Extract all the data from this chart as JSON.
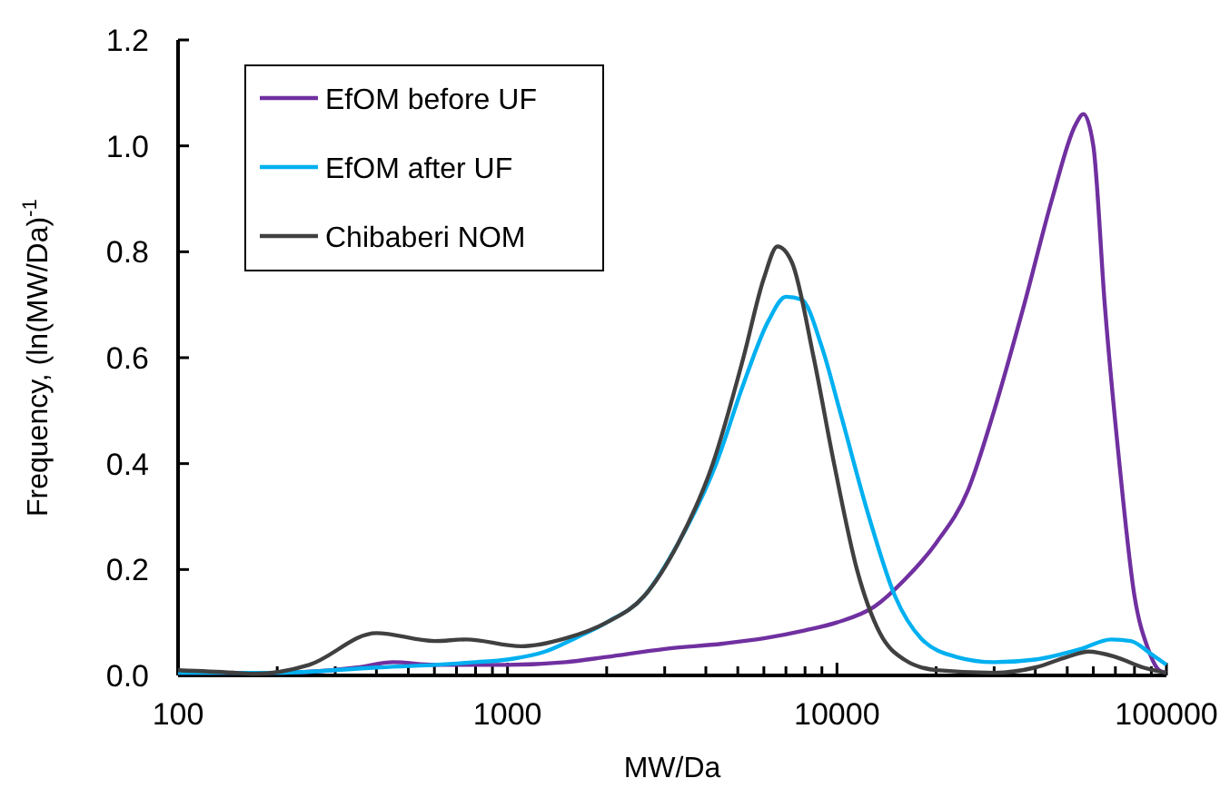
{
  "chart_data": {
    "type": "line",
    "xlabel": "MW/Da",
    "ylabel": "Frequency, (ln(MW/Da)$^{-1}$",
    "log": "x",
    "grid": false,
    "legend": "top left",
    "marker": "none",
    "line_style": "solid",
    "xlim": [
      100,
      100000
    ],
    "ylim": [
      0,
      1.2
    ],
    "xticks": [
      100,
      {
        "value": 200,
        "label": null
      },
      {
        "value": 300,
        "label": null
      },
      {
        "value": 400,
        "label": null
      },
      {
        "value": 500,
        "label": null
      },
      {
        "value": 600,
        "label": null
      },
      {
        "value": 700,
        "label": null
      },
      {
        "value": 800,
        "label": null
      },
      {
        "value": 900,
        "label": null
      },
      1000,
      {
        "value": 2000,
        "label": null
      },
      {
        "value": 3000,
        "label": null
      },
      {
        "value": 4000,
        "label": null
      },
      {
        "value": 5000,
        "label": null
      },
      {
        "value": 6000,
        "label": null
      },
      {
        "value": 7000,
        "label": null
      },
      {
        "value": 8000,
        "label": null
      },
      {
        "value": 9000,
        "label": null
      },
      10000,
      {
        "value": 20000,
        "label": null
      },
      {
        "value": 30000,
        "label": null
      },
      {
        "value": 40000,
        "label": null
      },
      {
        "value": 50000,
        "label": null
      },
      {
        "value": 60000,
        "label": null
      },
      {
        "value": 70000,
        "label": null
      },
      {
        "value": 80000,
        "label": null
      },
      {
        "value": 90000,
        "label": null
      },
      100000
    ],
    "yticks": [
      {
        "value": 0,
        "label": "0.0"
      },
      {
        "value": 0.2,
        "label": "0.2"
      },
      {
        "value": 0.4,
        "label": "0.4"
      },
      {
        "value": 0.6,
        "label": "0.6"
      },
      {
        "value": 0.8,
        "label": "0.8"
      },
      {
        "value": 1,
        "label": "1.0"
      },
      {
        "value": 1.2,
        "label": "1.2"
      }
    ],
    "series": [
      {
        "name": "EfOM before UF",
        "color": "#7030a0",
        "x": [
          100,
          200,
          350,
          450,
          600,
          1000,
          1500,
          2000,
          3000,
          4500,
          6000,
          8000,
          10000,
          13000,
          16000,
          20000,
          25000,
          30000,
          37000,
          45000,
          53000,
          56000,
          60000,
          65000,
          72000,
          80000,
          88000,
          95000,
          100000
        ],
        "values": [
          0.005,
          0.005,
          0.015,
          0.025,
          0.02,
          0.02,
          0.025,
          0.035,
          0.05,
          0.06,
          0.07,
          0.085,
          0.1,
          0.13,
          0.18,
          0.25,
          0.35,
          0.5,
          0.7,
          0.9,
          1.04,
          1.06,
          1.0,
          0.7,
          0.4,
          0.15,
          0.05,
          0.01,
          0.005
        ]
      },
      {
        "name": "EfOM after UF",
        "color": "#00b0f0",
        "x": [
          100,
          200,
          400,
          600,
          800,
          1000,
          1300,
          1600,
          2000,
          2600,
          3300,
          4300,
          5200,
          6200,
          7000,
          7800,
          9000,
          10200,
          12500,
          15000,
          18000,
          23000,
          30000,
          40000,
          55000,
          68000,
          78000,
          90000,
          100000
        ],
        "values": [
          0.005,
          0.005,
          0.015,
          0.02,
          0.025,
          0.03,
          0.045,
          0.07,
          0.1,
          0.15,
          0.25,
          0.4,
          0.55,
          0.67,
          0.715,
          0.71,
          0.62,
          0.5,
          0.3,
          0.15,
          0.07,
          0.035,
          0.025,
          0.03,
          0.05,
          0.068,
          0.065,
          0.04,
          0.02
        ]
      },
      {
        "name": "Chibaberi NOM",
        "color": "#404040",
        "x": [
          100,
          150,
          170,
          250,
          400,
          600,
          750,
          1100,
          1500,
          2000,
          2600,
          3300,
          4200,
          5200,
          6000,
          6600,
          7300,
          8500,
          9800,
          11500,
          13500,
          16000,
          20000,
          30000,
          40000,
          50000,
          58000,
          70000,
          85000,
          100000
        ],
        "values": [
          0.01,
          0.005,
          0.003,
          0.02,
          0.08,
          0.065,
          0.068,
          0.055,
          0.07,
          0.1,
          0.15,
          0.25,
          0.4,
          0.6,
          0.75,
          0.81,
          0.78,
          0.6,
          0.4,
          0.2,
          0.08,
          0.03,
          0.01,
          0.005,
          0.015,
          0.035,
          0.045,
          0.035,
          0.015,
          0.005
        ]
      }
    ]
  }
}
